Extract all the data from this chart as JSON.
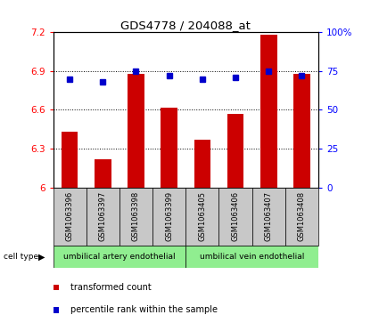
{
  "title": "GDS4778 / 204088_at",
  "samples": [
    "GSM1063396",
    "GSM1063397",
    "GSM1063398",
    "GSM1063399",
    "GSM1063405",
    "GSM1063406",
    "GSM1063407",
    "GSM1063408"
  ],
  "bar_values": [
    6.43,
    6.22,
    6.88,
    6.62,
    6.37,
    6.57,
    7.18,
    6.88
  ],
  "dot_values": [
    70,
    68,
    75,
    72,
    70,
    71,
    75,
    72
  ],
  "ylim_left": [
    6.0,
    7.2
  ],
  "ylim_right": [
    0,
    100
  ],
  "yticks_left": [
    6.0,
    6.3,
    6.6,
    6.9,
    7.2
  ],
  "yticks_right": [
    0,
    25,
    50,
    75,
    100
  ],
  "ytick_labels_left": [
    "6",
    "6.3",
    "6.6",
    "6.9",
    "7.2"
  ],
  "ytick_labels_right": [
    "0",
    "25",
    "50",
    "75",
    "100%"
  ],
  "bar_color": "#CC0000",
  "dot_color": "#0000CC",
  "bar_base": 6.0,
  "cell_type_groups": [
    {
      "label": "umbilical artery endothelial",
      "start": 0,
      "end": 3
    },
    {
      "label": "umbilical vein endothelial",
      "start": 4,
      "end": 7
    }
  ],
  "cell_type_label": "cell type",
  "sample_box_color": "#C8C8C8",
  "group_color": "#90EE90",
  "legend_items": [
    {
      "color": "#CC0000",
      "label": "transformed count"
    },
    {
      "color": "#0000CC",
      "label": "percentile rank within the sample"
    }
  ]
}
